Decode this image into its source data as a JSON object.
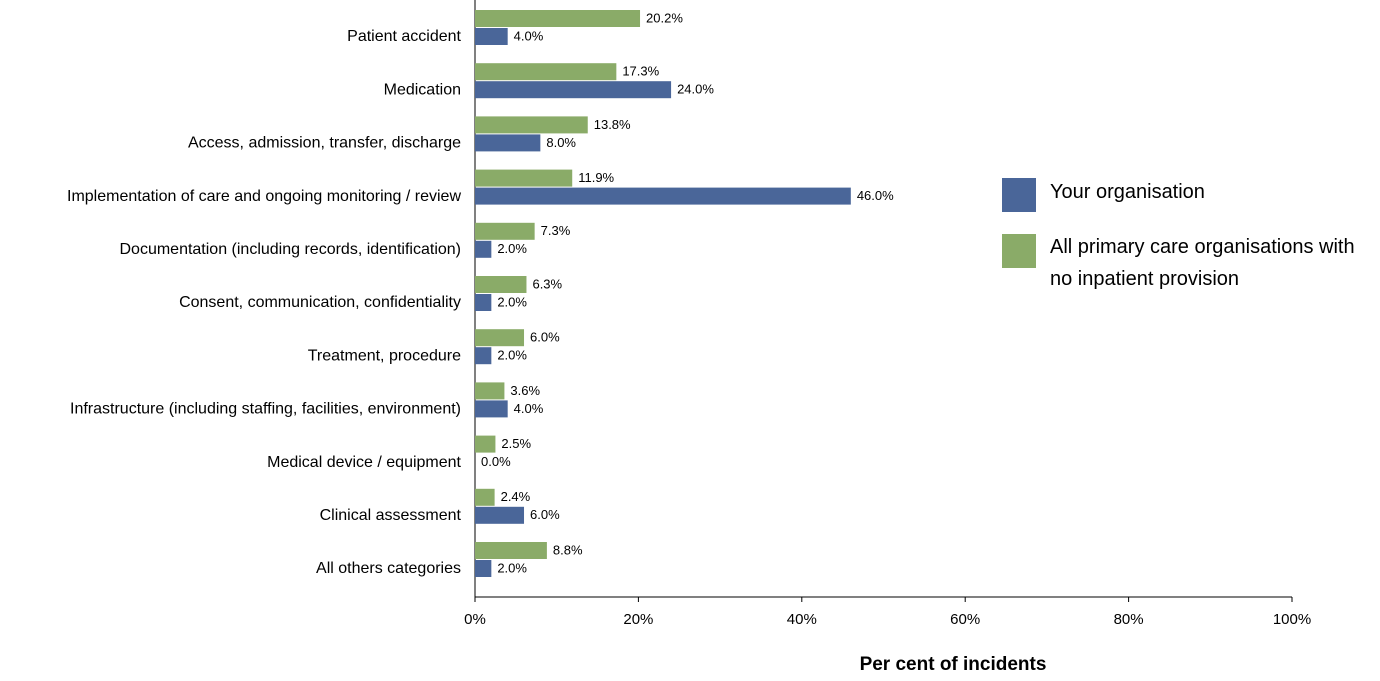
{
  "chart_data": {
    "type": "hbar",
    "xlabel": "Per cent of incidents",
    "categories": [
      "Patient accident",
      "Medication",
      "Access, admission, transfer, discharge",
      "Implementation of care and ongoing monitoring / review",
      "Documentation (including records, identification)",
      "Consent, communication, confidentiality",
      "Treatment, procedure",
      "Infrastructure (including staffing, facilities, environment)",
      "Medical device / equipment",
      "Clinical assessment",
      "All others categories"
    ],
    "series": [
      {
        "name": "Your organisation",
        "color": "#4a6699",
        "values": [
          4.0,
          24.0,
          8.0,
          46.0,
          2.0,
          2.0,
          2.0,
          4.0,
          0.0,
          6.0,
          2.0
        ],
        "value_labels": [
          "4.0%",
          "24.0%",
          "8.0%",
          "46.0%",
          "2.0%",
          "2.0%",
          "2.0%",
          "4.0%",
          "0.0%",
          "6.0%",
          "2.0%"
        ]
      },
      {
        "name": "All primary care organisations with no inpatient provision",
        "color": "#8aab68",
        "values": [
          20.2,
          17.3,
          13.8,
          11.9,
          7.3,
          6.3,
          6.0,
          3.6,
          2.5,
          2.4,
          8.8
        ],
        "value_labels": [
          "20.2%",
          "17.3%",
          "13.8%",
          "11.9%",
          "7.3%",
          "6.3%",
          "6.0%",
          "3.6%",
          "2.5%",
          "2.4%",
          "8.8%"
        ]
      }
    ],
    "xlim": [
      0,
      100
    ],
    "xticks": [
      {
        "value": 0,
        "label": "0%"
      },
      {
        "value": 20,
        "label": "20%"
      },
      {
        "value": 40,
        "label": "40%"
      },
      {
        "value": 60,
        "label": "60%"
      },
      {
        "value": 80,
        "label": "80%"
      },
      {
        "value": 100,
        "label": "100%"
      }
    ],
    "legend": "right"
  }
}
